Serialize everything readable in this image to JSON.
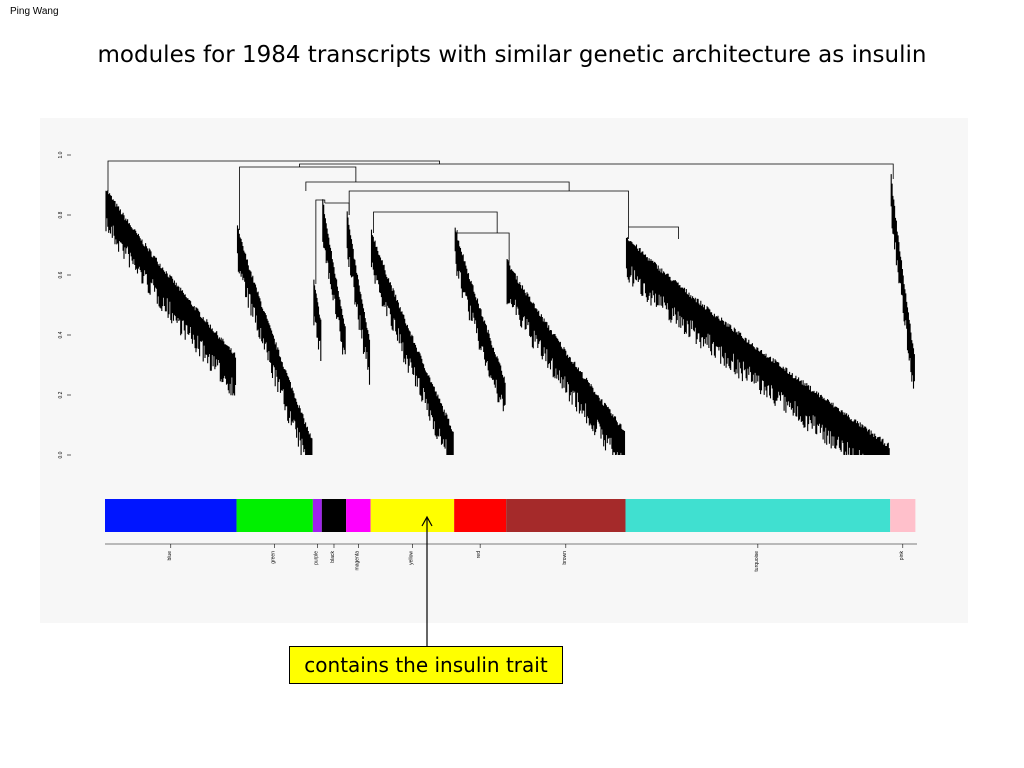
{
  "author": "Ping Wang",
  "title": "modules for 1984 transcripts with similar genetic architecture as insulin",
  "callout_text": "contains the insulin trait",
  "y_ticks": [
    "0.0",
    "0.2",
    "0.4",
    "0.6",
    "0.8",
    "1.0"
  ],
  "modules": [
    {
      "name": "blue",
      "color": "#0015ff",
      "share": 0.162
    },
    {
      "name": "green",
      "color": "#00f000",
      "share": 0.094
    },
    {
      "name": "purple",
      "color": "#a020f0",
      "share": 0.011
    },
    {
      "name": "black",
      "color": "#000000",
      "share": 0.03
    },
    {
      "name": "magenta",
      "color": "#ff00ff",
      "share": 0.03
    },
    {
      "name": "yellow",
      "color": "#ffff00",
      "share": 0.103
    },
    {
      "name": "red",
      "color": "#ff0000",
      "share": 0.064
    },
    {
      "name": "brown",
      "color": "#a52a2a",
      "share": 0.147
    },
    {
      "name": "turquoise",
      "color": "#40e0d0",
      "share": 0.326
    },
    {
      "name": "pink",
      "color": "#ffc0cb",
      "share": 0.031
    }
  ],
  "highlighted_module": "yellow"
}
